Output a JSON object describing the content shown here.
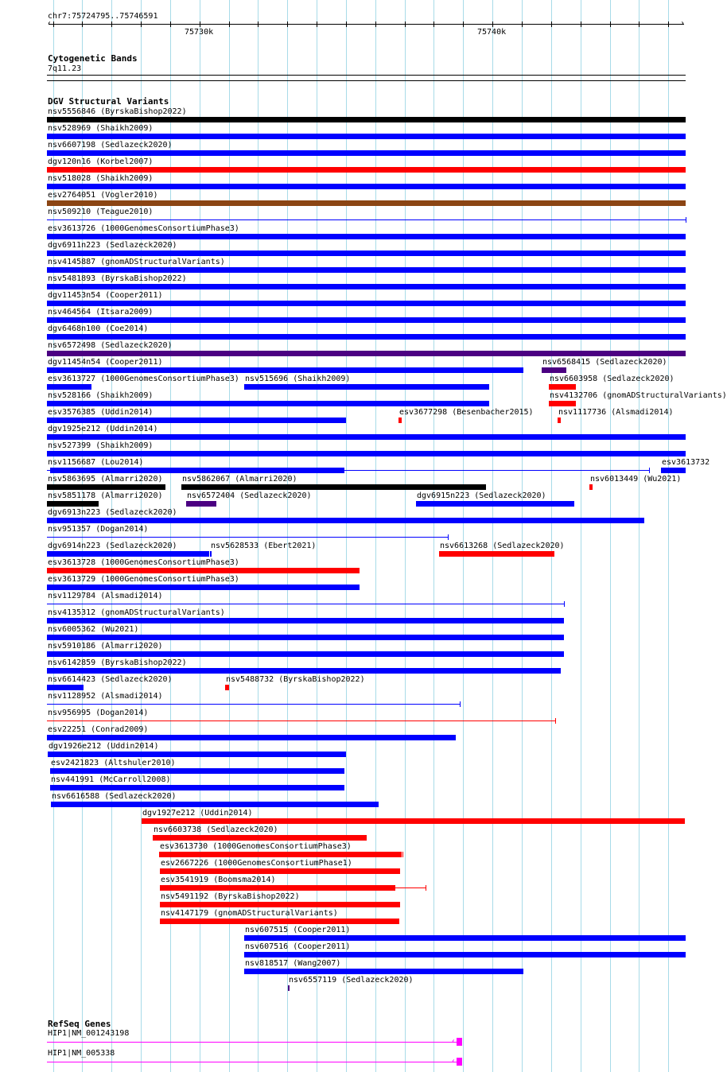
{
  "view": {
    "chrom": "chr7",
    "start": 75724795,
    "end": 75746591,
    "location_label": "chr7:75724795..75746591"
  },
  "ruler": {
    "major_labels": [
      {
        "bp": 75730000,
        "label": "75730k"
      },
      {
        "bp": 75740000,
        "label": "75740k"
      }
    ],
    "minor_tick_interval_bp": 1000
  },
  "colors": {
    "blue": "#0000ff",
    "red": "#ff0000",
    "black": "#000000",
    "brown": "#8b4513",
    "purple": "#4b0082",
    "magenta": "#ff00ff",
    "grid": "#a8dbe8"
  },
  "tracks": {
    "cytobands": {
      "title": "Cytogenetic Bands",
      "band_label": "7q11.23"
    },
    "dgv": {
      "title": "DGV Structural Variants",
      "rows": [
        [
          {
            "label": "nsv5556846 (ByrskaBishop2022)",
            "start": 75724783,
            "end": 75746601,
            "color": "black"
          }
        ],
        [
          {
            "label": "nsv528969 (Shaikh2009)",
            "start": 75724783,
            "end": 75746601,
            "color": "blue"
          }
        ],
        [
          {
            "label": "nsv6607198 (Sedlazeck2020)",
            "start": 75724783,
            "end": 75746601,
            "color": "blue"
          }
        ],
        [
          {
            "label": "dgv120n16 (Korbel2007)",
            "start": 75724783,
            "end": 75746601,
            "color": "red"
          }
        ],
        [
          {
            "label": "nsv518028 (Shaikh2009)",
            "start": 75724783,
            "end": 75746601,
            "color": "blue"
          }
        ],
        [
          {
            "label": "esv2764051 (Vogler2010)",
            "start": 75724783,
            "end": 75746601,
            "color": "brown"
          }
        ],
        [
          {
            "label": "nsv509210 (Teague2010)",
            "start": 75724783,
            "end": 75746601,
            "color": "blue",
            "style": "thin"
          }
        ],
        [
          {
            "label": "esv3613726 (1000GenomesConsortiumPhase3)",
            "start": 75724783,
            "end": 75746601,
            "color": "blue"
          }
        ],
        [
          {
            "label": "dgv6911n223 (Sedlazeck2020)",
            "start": 75724783,
            "end": 75746601,
            "color": "blue"
          }
        ],
        [
          {
            "label": "nsv4145887 (gnomADStructuralVariants)",
            "start": 75724783,
            "end": 75746601,
            "color": "blue"
          }
        ],
        [
          {
            "label": "nsv5481893 (ByrskaBishop2022)",
            "start": 75724783,
            "end": 75746601,
            "color": "blue"
          }
        ],
        [
          {
            "label": "dgv11453n54 (Cooper2011)",
            "start": 75724783,
            "end": 75746601,
            "color": "blue"
          }
        ],
        [
          {
            "label": "nsv464564 (Itsara2009)",
            "start": 75724783,
            "end": 75746601,
            "color": "blue"
          }
        ],
        [
          {
            "label": "dgv6468n100 (Coe2014)",
            "start": 75724783,
            "end": 75746601,
            "color": "blue"
          }
        ],
        [
          {
            "label": "nsv6572498 (Sedlazeck2020)",
            "start": 75724783,
            "end": 75746601,
            "color": "purple"
          }
        ],
        [
          {
            "label": "dgv11454n54 (Cooper2011)",
            "start": 75724783,
            "end": 75741058,
            "color": "blue"
          },
          {
            "label": "nsv6568415 (Sedlazeck2020)",
            "start": 75741683,
            "end": 75742525,
            "color": "purple"
          }
        ],
        [
          {
            "label": "esv3613727 (1000GenomesConsortiumPhase3)",
            "start": 75724783,
            "end": 75726304,
            "color": "blue"
          },
          {
            "label": "nsv515696 (Shaikh2009)",
            "start": 75731521,
            "end": 75739890,
            "color": "blue"
          },
          {
            "label": "nsv6603958 (Sedlazeck2020)",
            "start": 75741927,
            "end": 75742851,
            "color": "red"
          }
        ],
        [
          {
            "label": "nsv528166 (Shaikh2009)",
            "start": 75724783,
            "end": 75739890,
            "color": "blue"
          },
          {
            "label": "nsv4132706 (gnomADStructuralVariants)",
            "start": 75741927,
            "end": 75742851,
            "color": "red"
          }
        ],
        [
          {
            "label": "esv3576385 (Uddin2014)",
            "start": 75724783,
            "end": 75734999,
            "color": "blue"
          },
          {
            "label": "esv3677298 (Besenbacher2015)",
            "start": 75736792,
            "end": 75736901,
            "color": "red"
          },
          {
            "label": "nsv1117736 (Alsmadi2014)",
            "start": 75742226,
            "end": 75742335,
            "color": "red"
          }
        ],
        [
          {
            "label": "dgv1925e212 (Uddin2014)",
            "start": 75724783,
            "end": 75746601,
            "color": "blue"
          }
        ],
        [
          {
            "label": "nsv527399 (Shaikh2009)",
            "start": 75724783,
            "end": 75746601,
            "color": "blue"
          }
        ],
        [
          {
            "label": "nsv1156687 (Lou2014)",
            "start": 75724783,
            "end": 75745351,
            "thick_start": 75724892,
            "thick_end": 75734945,
            "color": "blue",
            "style": "thin"
          },
          {
            "label": "esv3613732",
            "start": 75745758,
            "end": 75746601,
            "color": "blue"
          }
        ],
        [
          {
            "label": "nsv5863695 (Almarri2020)",
            "start": 75724783,
            "end": 75728831,
            "color": "black"
          },
          {
            "label": "nsv5862067 (Almarri2020)",
            "start": 75729375,
            "end": 75739781,
            "color": "black"
          },
          {
            "label": "nsv6013449 (Wu2021)",
            "start": 75743313,
            "end": 75743422,
            "color": "red"
          }
        ],
        [
          {
            "label": "nsv5851178 (Almarri2020)",
            "start": 75724783,
            "end": 75726549,
            "color": "black"
          },
          {
            "label": "nsv6572404 (Sedlazeck2020)",
            "start": 75729538,
            "end": 75730570,
            "color": "purple"
          },
          {
            "label": "dgv6915n223 (Sedlazeck2020)",
            "start": 75737390,
            "end": 75742797,
            "color": "blue"
          }
        ],
        [
          {
            "label": "dgv6913n223 (Sedlazeck2020)",
            "start": 75724783,
            "end": 75745188,
            "color": "blue"
          }
        ],
        [
          {
            "label": "nsv951357 (Dogan2014)",
            "start": 75724783,
            "end": 75738477,
            "color": "blue",
            "style": "thin"
          }
        ],
        [
          {
            "label": "dgv6914n223 (Sedlazeck2020)",
            "start": 75724783,
            "end": 75730326,
            "color": "blue"
          },
          {
            "label": "nsv5628533 (Ebert2021)",
            "start": 75730353,
            "end": 75730407,
            "color": "blue"
          },
          {
            "label": "nsv6613268 (Sedlazeck2020)",
            "start": 75738178,
            "end": 75742117,
            "color": "red"
          }
        ],
        [
          {
            "label": "esv3613728 (1000GenomesConsortiumPhase3)",
            "start": 75724783,
            "end": 75735461,
            "color": "red"
          }
        ],
        [
          {
            "label": "esv3613729 (1000GenomesConsortiumPhase3)",
            "start": 75724783,
            "end": 75735461,
            "color": "blue"
          }
        ],
        [
          {
            "label": "nsv1129784 (Alsmadi2014)",
            "start": 75724783,
            "end": 75742444,
            "color": "blue",
            "style": "thin"
          }
        ],
        [
          {
            "label": "nsv4135312 (gnomADStructuralVariants)",
            "start": 75724783,
            "end": 75742444,
            "color": "blue"
          }
        ],
        [
          {
            "label": "nsv6005362 (Wu2021)",
            "start": 75724783,
            "end": 75742444,
            "color": "blue"
          }
        ],
        [
          {
            "label": "nsv5910186 (Almarri2020)",
            "start": 75724783,
            "end": 75742444,
            "color": "blue"
          }
        ],
        [
          {
            "label": "nsv6142859 (ByrskaBishop2022)",
            "start": 75724783,
            "end": 75742335,
            "color": "blue"
          }
        ],
        [
          {
            "label": "nsv6614423 (Sedlazeck2020)",
            "start": 75724783,
            "end": 75726033,
            "color": "blue"
          },
          {
            "label": "nsv5488732 (ByrskaBishop2022)",
            "start": 75730869,
            "end": 75731005,
            "color": "red"
          }
        ],
        [
          {
            "label": "nsv1128952 (Alsmadi2014)",
            "start": 75724783,
            "end": 75738884,
            "color": "blue",
            "style": "thin"
          }
        ],
        [
          {
            "label": "nsv956995 (Dogan2014)",
            "start": 75724783,
            "end": 75742145,
            "color": "red",
            "style": "thin"
          }
        ],
        [
          {
            "label": "esv22251 (Conrad2009)",
            "start": 75724783,
            "end": 75738748,
            "color": "blue"
          }
        ],
        [
          {
            "label": "dgv1926e212 (Uddin2014)",
            "start": 75724810,
            "end": 75734999,
            "color": "blue"
          }
        ],
        [
          {
            "label": "esv2421823 (Altshuler2010)",
            "start": 75724892,
            "end": 75734945,
            "color": "blue"
          }
        ],
        [
          {
            "label": "nsv441991 (McCarroll2008)",
            "start": 75724892,
            "end": 75734945,
            "color": "blue"
          }
        ],
        [
          {
            "label": "nsv6616588 (Sedlazeck2020)",
            "start": 75724919,
            "end": 75736113,
            "color": "blue"
          }
        ],
        [
          {
            "label": "dgv1927e212 (Uddin2014)",
            "start": 75728016,
            "end": 75746573,
            "color": "red"
          }
        ],
        [
          {
            "label": "nsv6603738 (Sedlazeck2020)",
            "start": 75728397,
            "end": 75735705,
            "color": "red"
          }
        ],
        [
          {
            "label": "esv3613730 (1000GenomesConsortiumPhase3)",
            "start": 75728614,
            "end": 75736901,
            "color": "red",
            "end_tick": true
          }
        ],
        [
          {
            "label": "esv2667226 (1000GenomesConsortiumPhase1)",
            "start": 75728641,
            "end": 75736846,
            "color": "red"
          }
        ],
        [
          {
            "label": "esv3541919 (Boomsma2014)",
            "start": 75728641,
            "end": 75737716,
            "thick_start": 75728641,
            "thick_end": 75736683,
            "color": "red",
            "style": "thin"
          }
        ],
        [
          {
            "label": "nsv5491192 (ByrskaBishop2022)",
            "start": 75728641,
            "end": 75736846,
            "color": "red"
          }
        ],
        [
          {
            "label": "nsv4147179 (gnomADStructuralVariants)",
            "start": 75728641,
            "end": 75736819,
            "color": "red"
          }
        ],
        [
          {
            "label": "nsv607515 (Cooper2011)",
            "start": 75731521,
            "end": 75746601,
            "color": "blue"
          }
        ],
        [
          {
            "label": "nsv607516 (Cooper2011)",
            "start": 75731521,
            "end": 75746601,
            "color": "blue"
          }
        ],
        [
          {
            "label": "nsv818517 (Wang2007)",
            "start": 75731521,
            "end": 75741058,
            "color": "blue"
          }
        ],
        [
          {
            "label": "nsv6557119 (Sedlazeck2020)",
            "start": 75733016,
            "end": 75733070,
            "color": "purple"
          }
        ]
      ]
    },
    "refseq": {
      "title": "RefSeq Genes",
      "genes": [
        {
          "label": "HIP1|NM_001243198",
          "start": 75724783,
          "end": 75738966,
          "exon_start": 75738776,
          "strand": "-",
          "color": "magenta"
        },
        {
          "label": "HIP1|NM_005338",
          "start": 75724783,
          "end": 75738966,
          "exon_start": 75738776,
          "strand": "-",
          "color": "magenta"
        }
      ]
    }
  }
}
